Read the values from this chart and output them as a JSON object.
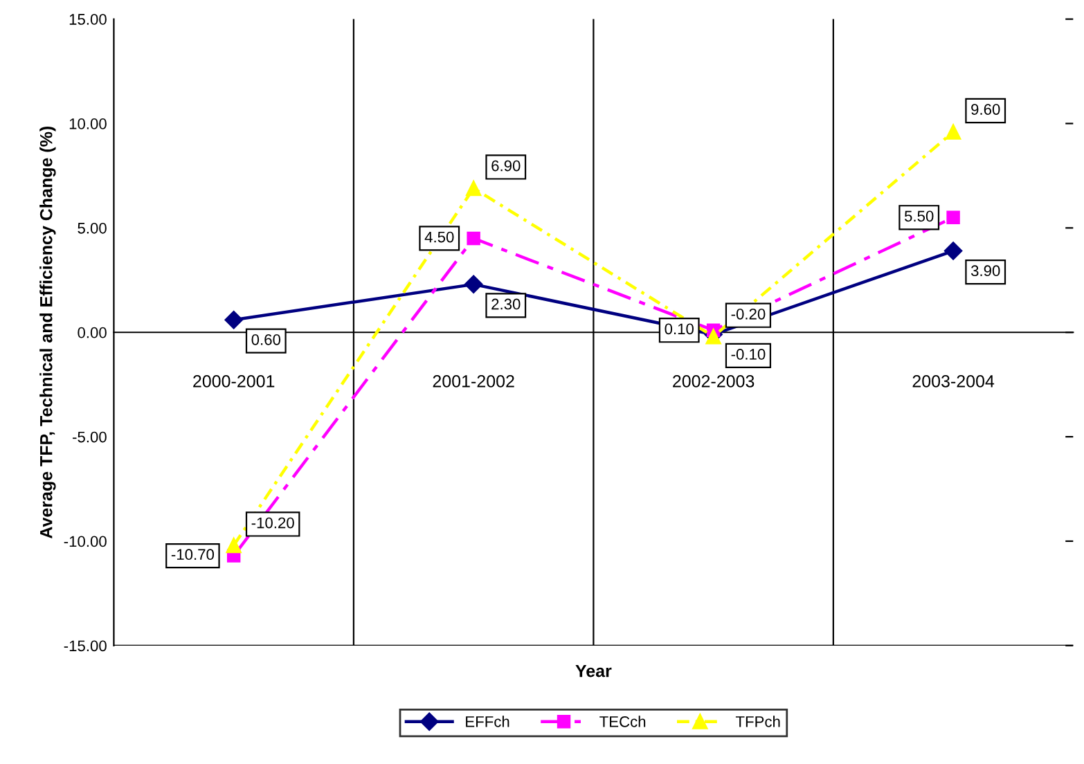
{
  "chart_data": {
    "type": "line",
    "xlabel": "Year",
    "ylabel": "Average TFP, Technical and Efficiency Change (%)",
    "categories": [
      "2000-2001",
      "2001-2002",
      "2002-2003",
      "2003-2004"
    ],
    "series": [
      {
        "name": "EFFch",
        "color": "#000080",
        "marker": "diamond",
        "line_style": "solid",
        "values": [
          0.6,
          2.3,
          -0.1,
          3.9
        ],
        "value_labels": [
          "0.60",
          "2.30",
          "-0.10",
          "3.90"
        ]
      },
      {
        "name": "TECch",
        "color": "#ff00ff",
        "marker": "square",
        "line_style": "dashed",
        "values": [
          -10.7,
          4.5,
          0.1,
          5.5
        ],
        "value_labels": [
          "-10.70",
          "4.50",
          "0.10",
          "5.50"
        ]
      },
      {
        "name": "TFPch",
        "color": "#ffff00",
        "marker": "triangle",
        "line_style": "dotted",
        "values": [
          -10.2,
          6.9,
          -0.2,
          9.6
        ],
        "value_labels": [
          "-10.20",
          "6.90",
          "-0.20",
          "9.60"
        ]
      }
    ],
    "ylim": [
      -15,
      15
    ],
    "yticks": [
      {
        "value": -15,
        "label": "-15.00"
      },
      {
        "value": -10,
        "label": "-10.00"
      },
      {
        "value": -5,
        "label": "-5.00"
      },
      {
        "value": 0,
        "label": "0.00"
      },
      {
        "value": 5,
        "label": "5.00"
      },
      {
        "value": 10,
        "label": "10.00"
      },
      {
        "value": 15,
        "label": "15.00"
      }
    ],
    "grid": "x",
    "legend": "bottom"
  }
}
